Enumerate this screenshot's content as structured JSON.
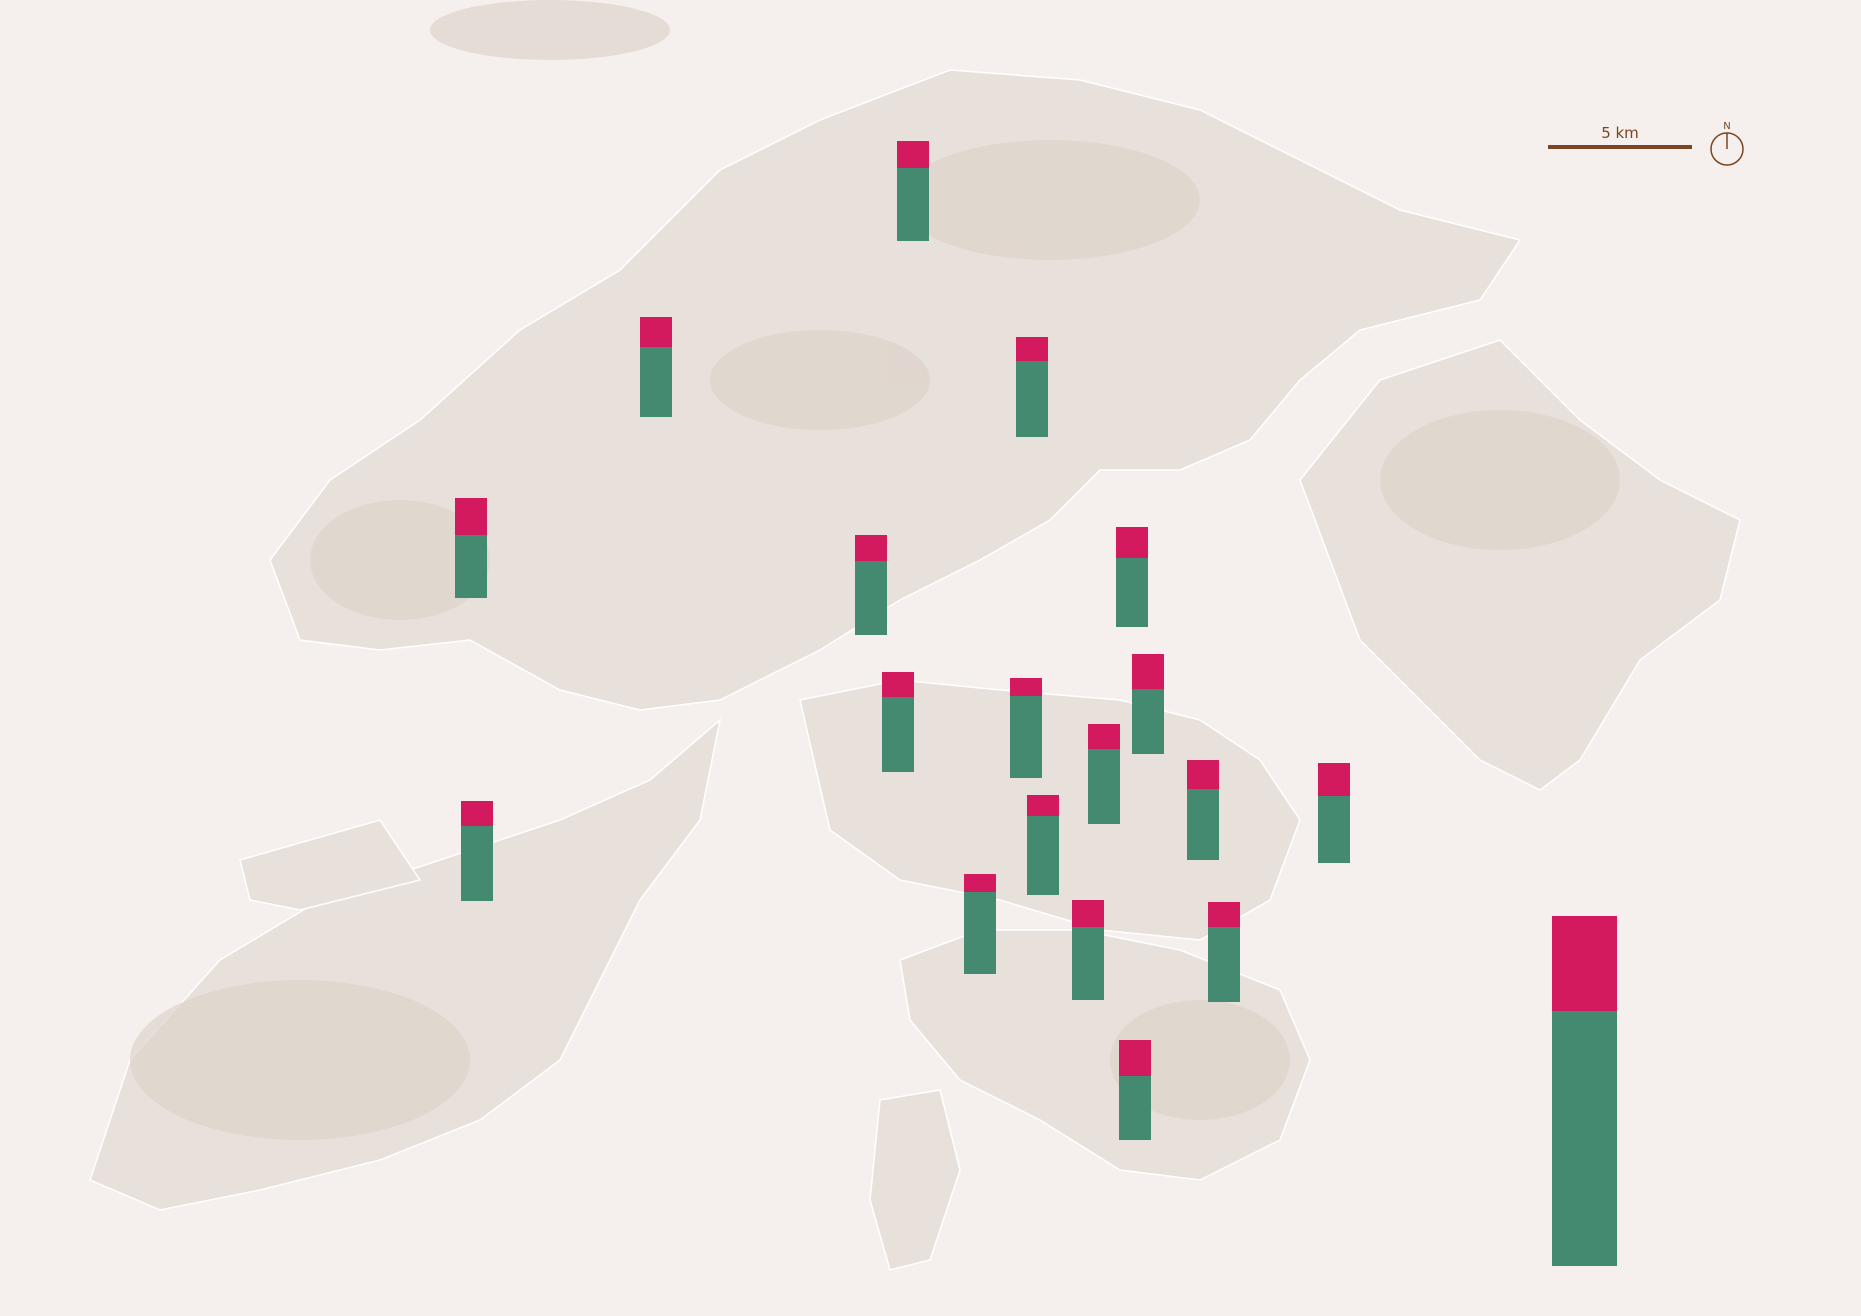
{
  "map": {
    "scale_bar": {
      "label": "5 km"
    },
    "north_arrow": {
      "label": "N",
      "icon": "north-arrow-icon"
    },
    "colors": {
      "background": "#f5f0ed",
      "land": "#e8e0da",
      "terrain": "#d9cfc7",
      "top_segment": "#d41a5e",
      "bottom_segment": "#438a70",
      "scale": "#7a4520"
    },
    "bars_top_segment_share_percent": [
      27,
      30,
      24,
      37,
      26,
      31,
      25,
      18,
      35,
      25,
      29,
      33,
      25,
      21,
      18,
      27,
      25,
      36
    ],
    "legend_bar": {
      "top_segment_share_percent": 27
    }
  }
}
